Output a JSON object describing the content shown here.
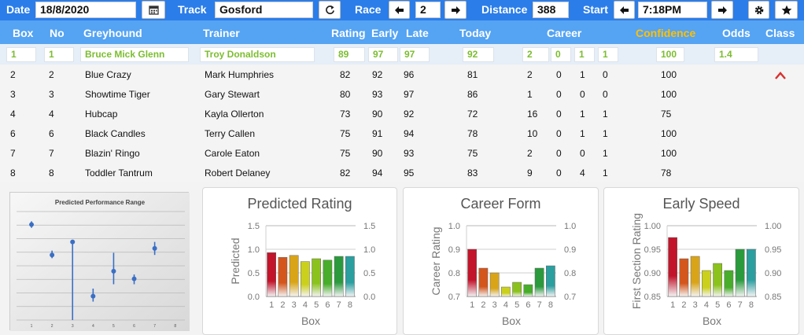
{
  "toolbar": {
    "date_label": "Date",
    "date_value": "18/8/2020",
    "track_label": "Track",
    "track_value": "Gosford",
    "race_label": "Race",
    "race_value": "2",
    "distance_label": "Distance",
    "distance_value": "388",
    "start_label": "Start",
    "start_value": "7:18PM",
    "icons": [
      "calendar-icon",
      "refresh-icon",
      "arrow-left-icon",
      "arrow-right-icon",
      "gear-icon",
      "star-icon"
    ]
  },
  "columns": {
    "box": "Box",
    "no": "No",
    "greyhound": "Greyhound",
    "trainer": "Trainer",
    "rating": "Rating",
    "early": "Early",
    "late": "Late",
    "today": "Today",
    "career": "Career",
    "confidence": "Confidence",
    "odds": "Odds",
    "class": "Class"
  },
  "selected": {
    "box": "1",
    "no": "1",
    "greyhound": "Bruce Mick Glenn",
    "trainer": "Troy Donaldson",
    "rating": "89",
    "early": "97",
    "late": "97",
    "today": "92",
    "career": [
      "2",
      "0",
      "1",
      "1"
    ],
    "confidence": "100",
    "odds": "1.4"
  },
  "runners": [
    {
      "box": "2",
      "no": "2",
      "greyhound": "Blue Crazy",
      "trainer": "Mark Humphries",
      "rating": "82",
      "early": "92",
      "late": "96",
      "today": "81",
      "c1": "2",
      "c2": "0",
      "c3": "1",
      "c4": "0",
      "confidence": "100"
    },
    {
      "box": "3",
      "no": "3",
      "greyhound": "Showtime Tiger",
      "trainer": "Gary Stewart",
      "rating": "80",
      "early": "93",
      "late": "97",
      "today": "86",
      "c1": "1",
      "c2": "0",
      "c3": "0",
      "c4": "0",
      "confidence": "100"
    },
    {
      "box": "4",
      "no": "4",
      "greyhound": "Hubcap",
      "trainer": "Kayla Ollerton",
      "rating": "73",
      "early": "90",
      "late": "92",
      "today": "72",
      "c1": "16",
      "c2": "0",
      "c3": "1",
      "c4": "1",
      "confidence": "75"
    },
    {
      "box": "6",
      "no": "6",
      "greyhound": "Black Candles",
      "trainer": "Terry Callen",
      "rating": "75",
      "early": "91",
      "late": "94",
      "today": "78",
      "c1": "10",
      "c2": "0",
      "c3": "1",
      "c4": "1",
      "confidence": "100"
    },
    {
      "box": "7",
      "no": "7",
      "greyhound": "Blazin' Ringo",
      "trainer": "Carole Eaton",
      "rating": "75",
      "early": "90",
      "late": "93",
      "today": "75",
      "c1": "2",
      "c2": "0",
      "c3": "0",
      "c4": "1",
      "confidence": "100"
    },
    {
      "box": "8",
      "no": "8",
      "greyhound": "Toddler Tantrum",
      "trainer": "Robert Delaney",
      "rating": "82",
      "early": "94",
      "late": "95",
      "today": "83",
      "c1": "9",
      "c2": "0",
      "c3": "4",
      "c4": "1",
      "confidence": "78"
    }
  ],
  "colors": {
    "topbar": "#2b7de9",
    "header": "#55a3f3",
    "confidence": "#ffc000",
    "selected_text": "#7cbd2f",
    "arrow": "#d9302c"
  },
  "chart_data": [
    {
      "type": "scatter",
      "title": "Predicted Performance Range",
      "x": [
        1,
        2,
        3,
        4,
        5,
        6,
        7,
        8
      ],
      "points": [
        {
          "x": 1,
          "y": 0.88,
          "lo": 0.85,
          "hi": 0.91
        },
        {
          "x": 2,
          "y": 0.6,
          "lo": 0.57,
          "hi": 0.64
        },
        {
          "x": 3,
          "y": 0.72,
          "lo": 0.0,
          "hi": 0.72
        },
        {
          "x": 4,
          "y": 0.22,
          "lo": 0.17,
          "hi": 0.29
        },
        {
          "x": 5,
          "y": 0.45,
          "lo": 0.33,
          "hi": 0.62
        },
        {
          "x": 6,
          "y": 0.38,
          "lo": 0.33,
          "hi": 0.42
        },
        {
          "x": 7,
          "y": 0.66,
          "lo": 0.6,
          "hi": 0.72
        }
      ]
    },
    {
      "type": "bar",
      "title": "Predicted Rating",
      "xlabel": "Box",
      "ylabel": "Predicted",
      "categories": [
        "1",
        "2",
        "3",
        "4",
        "5",
        "6",
        "7",
        "8"
      ],
      "values": [
        0.93,
        0.83,
        0.87,
        0.74,
        0.8,
        0.77,
        0.85,
        0.85
      ],
      "ylim": [
        0,
        1.5
      ],
      "yticks": [
        "0.0",
        "0.5",
        "1.0",
        "1.5"
      ]
    },
    {
      "type": "bar",
      "title": "Career Form",
      "xlabel": "Box",
      "ylabel": "Career Rating",
      "categories": [
        "1",
        "2",
        "3",
        "4",
        "5",
        "6",
        "7",
        "8"
      ],
      "values": [
        0.9,
        0.82,
        0.8,
        0.74,
        0.76,
        0.75,
        0.82,
        0.83
      ],
      "ylim": [
        0.7,
        1.0
      ],
      "yticks": [
        "0.7",
        "0.8",
        "0.9",
        "1.0"
      ]
    },
    {
      "type": "bar",
      "title": "Early Speed",
      "xlabel": "Box",
      "ylabel": "First Section Rating",
      "categories": [
        "1",
        "2",
        "3",
        "4",
        "5",
        "6",
        "7",
        "8"
      ],
      "values": [
        0.975,
        0.93,
        0.935,
        0.905,
        0.92,
        0.905,
        0.95,
        0.95
      ],
      "ylim": [
        0.85,
        1.0
      ],
      "yticks": [
        "0.85",
        "0.90",
        "0.95",
        "1.00"
      ]
    }
  ]
}
